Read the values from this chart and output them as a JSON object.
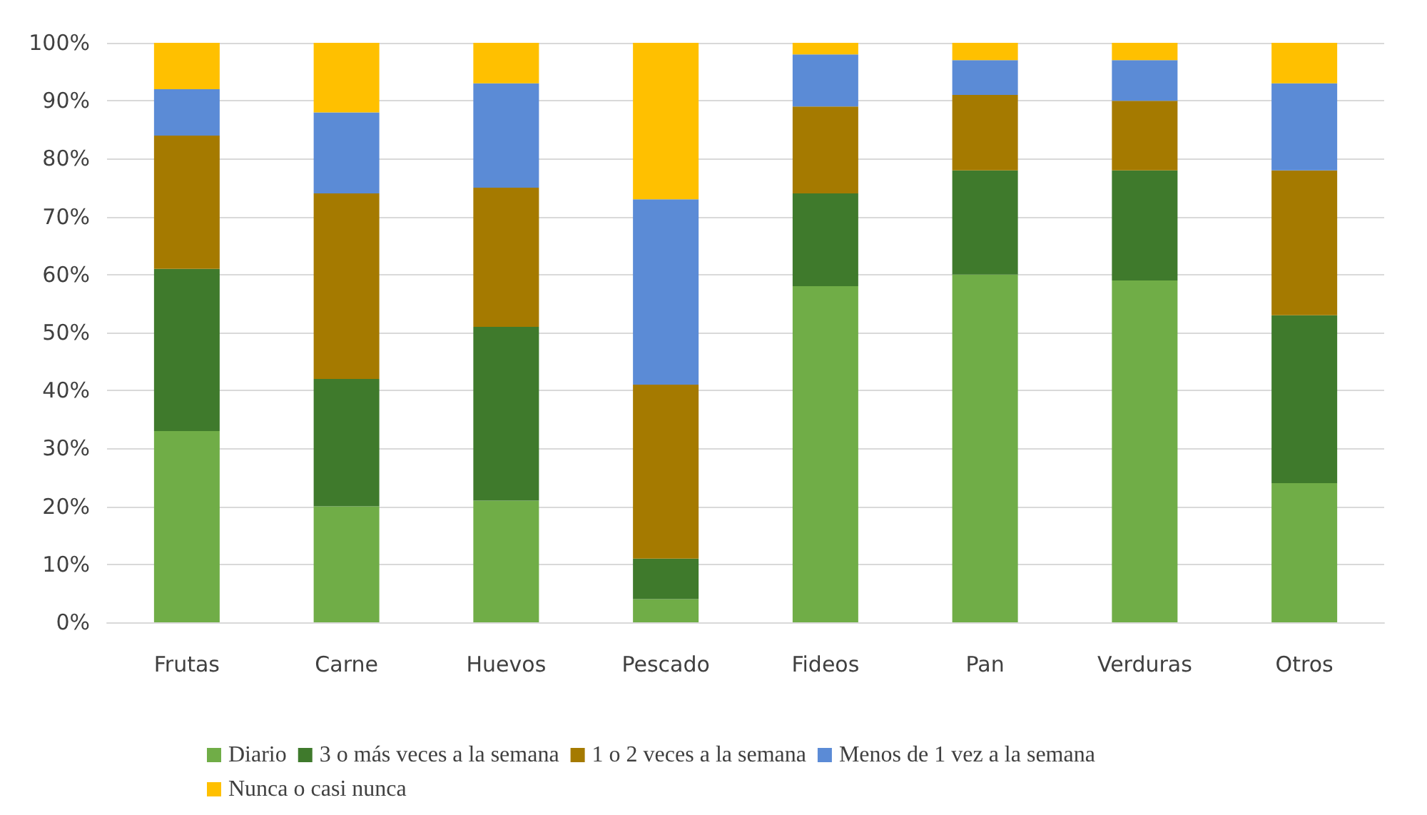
{
  "chart_data": {
    "type": "bar",
    "stacked": true,
    "categories": [
      "Frutas",
      "Carne",
      "Huevos",
      "Pescado",
      "Fideos",
      "Pan",
      "Verduras",
      "Otros"
    ],
    "series": [
      {
        "name": "Diario",
        "color": "#70ad47",
        "values": [
          33,
          20,
          21,
          4,
          58,
          60,
          59,
          24
        ]
      },
      {
        "name": "3 o más veces a la semana",
        "color": "#3f7a2c",
        "values": [
          28,
          22,
          30,
          7,
          16,
          18,
          19,
          29
        ]
      },
      {
        "name": "1 o 2 veces a la semana",
        "color": "#a57a00",
        "values": [
          23,
          32,
          24,
          30,
          15,
          13,
          12,
          25
        ]
      },
      {
        "name": "Menos de 1 vez a la semana",
        "color": "#5b8bd6",
        "values": [
          8,
          14,
          18,
          32,
          9,
          6,
          7,
          15
        ]
      },
      {
        "name": "Nunca o casi nunca",
        "color": "#ffc000",
        "values": [
          8,
          12,
          7,
          27,
          2,
          3,
          3,
          7
        ]
      }
    ],
    "ylim": [
      0,
      100
    ],
    "yticks": [
      {
        "value": 0,
        "label": "0%"
      },
      {
        "value": 10,
        "label": "10%"
      },
      {
        "value": 20,
        "label": "20%"
      },
      {
        "value": 30,
        "label": "30%"
      },
      {
        "value": 40,
        "label": "40%"
      },
      {
        "value": 50,
        "label": "50%"
      },
      {
        "value": 60,
        "label": "60%"
      },
      {
        "value": 70,
        "label": "70%"
      },
      {
        "value": 80,
        "label": "80%"
      },
      {
        "value": 90,
        "label": "90%"
      },
      {
        "value": 100,
        "label": "100%"
      }
    ],
    "grid": "y",
    "legend": "bottom"
  }
}
